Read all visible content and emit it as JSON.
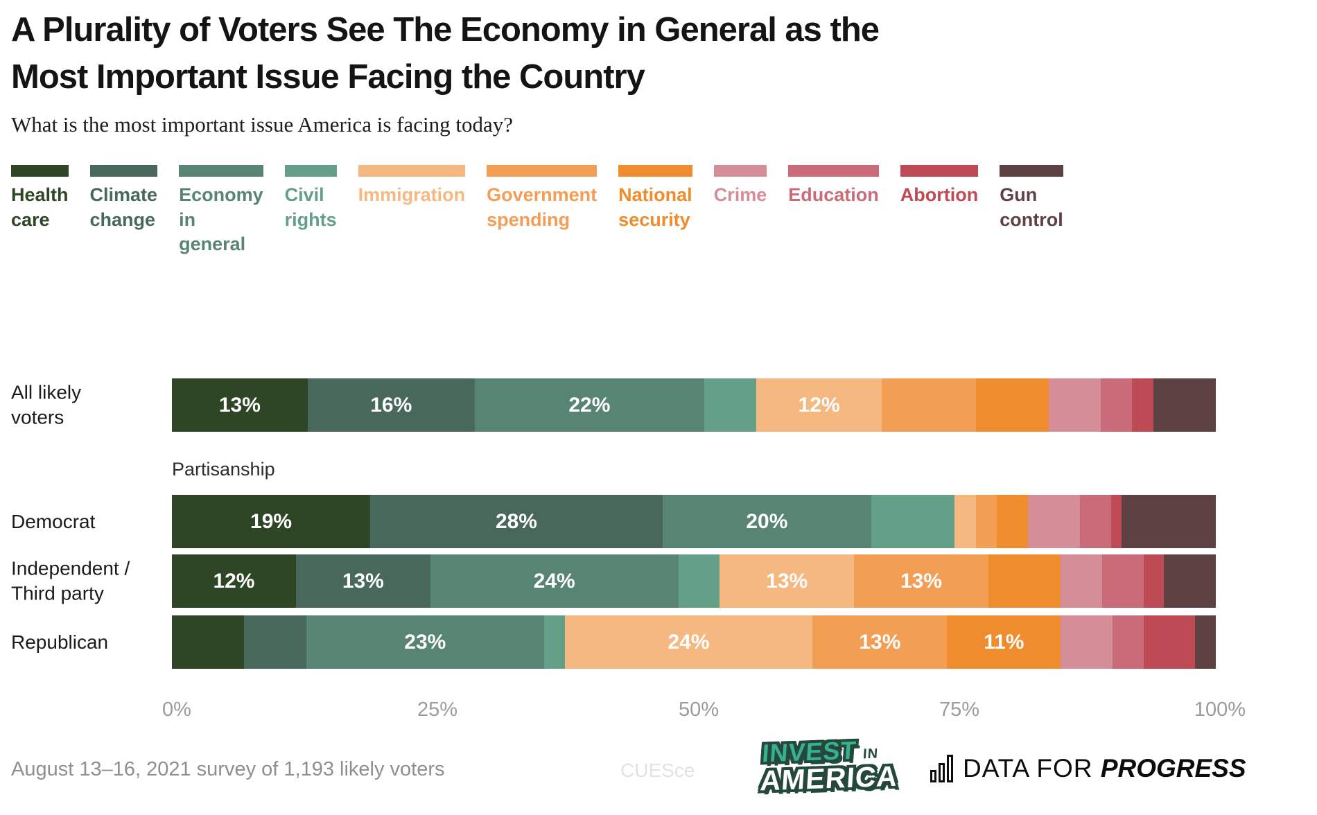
{
  "header": {
    "title": "A Plurality of Voters See The Economy in General as the Most Important Issue Facing the Country",
    "title_lines": [
      "A Plurality of Voters See The Economy in General as the",
      "Most Important Issue Facing the Country"
    ],
    "subtitle": "What is the most important issue America is facing today?"
  },
  "legend": {
    "items": [
      {
        "label": "Health care",
        "color": "#2f4626"
      },
      {
        "label": "Climate change",
        "color": "#48685c"
      },
      {
        "label": "Economy in general",
        "color": "#588573"
      },
      {
        "label": "Civil rights",
        "color": "#63a087"
      },
      {
        "label": "Immigration",
        "color": "#f6b881"
      },
      {
        "label": "Government spending",
        "color": "#f39e55"
      },
      {
        "label": "National security",
        "color": "#ee8c2e"
      },
      {
        "label": "Crime",
        "color": "#d58d98"
      },
      {
        "label": "Education",
        "color": "#c96b78"
      },
      {
        "label": "Abortion",
        "color": "#be4a56"
      },
      {
        "label": "Gun control",
        "color": "#5e4142"
      }
    ]
  },
  "chart_data": {
    "type": "bar",
    "stacked": true,
    "orientation": "horizontal",
    "title": "A Plurality of Voters See The Economy in General as the Most Important Issue Facing the Country",
    "question": "What is the most important issue America is facing today?",
    "categories": [
      "Health care",
      "Climate change",
      "Economy in general",
      "Civil rights",
      "Immigration",
      "Government spending",
      "National security",
      "Crime",
      "Education",
      "Abortion",
      "Gun control"
    ],
    "colors": [
      "#2f4626",
      "#48685c",
      "#588573",
      "#63a087",
      "#f6b881",
      "#f39e55",
      "#ee8c2e",
      "#d58d98",
      "#c96b78",
      "#be4a56",
      "#5e4142"
    ],
    "group_label": "Partisanship",
    "value_label_min": 11,
    "xlim": [
      0,
      100
    ],
    "x_ticks": [
      "0%",
      "25%",
      "50%",
      "75%",
      "100%"
    ],
    "rows": [
      {
        "label": "All likely voters",
        "label_lines": [
          "All likely",
          "voters"
        ],
        "values": [
          13,
          16,
          22,
          5,
          12,
          9,
          7,
          5,
          3,
          2,
          6
        ]
      },
      {
        "label": "Democrat",
        "label_lines": [
          "Democrat"
        ],
        "group": "Partisanship",
        "values": [
          19,
          28,
          20,
          8,
          2,
          2,
          3,
          5,
          3,
          1,
          9
        ]
      },
      {
        "label": "Independent / Third party",
        "label_lines": [
          "Independent /",
          "Third party"
        ],
        "group": "Partisanship",
        "values": [
          12,
          13,
          24,
          4,
          13,
          13,
          7,
          4,
          4,
          2,
          5
        ]
      },
      {
        "label": "Republican",
        "label_lines": [
          "Republican"
        ],
        "group": "Partisanship",
        "values": [
          7,
          6,
          23,
          2,
          24,
          13,
          11,
          5,
          3,
          5,
          2
        ]
      }
    ]
  },
  "axis": {
    "ticks": [
      "0%",
      "25%",
      "50%",
      "75%",
      "100%"
    ]
  },
  "footer": {
    "note": "August 13–16, 2021 survey of 1,193 likely voters",
    "watermark": "CUESce",
    "invest_logo": {
      "word1": "INVEST",
      "word2": "IN",
      "word3": "AMERICA"
    },
    "dfp_logo": {
      "prefix": "DATA FOR",
      "suffix": "PROGRESS"
    }
  }
}
